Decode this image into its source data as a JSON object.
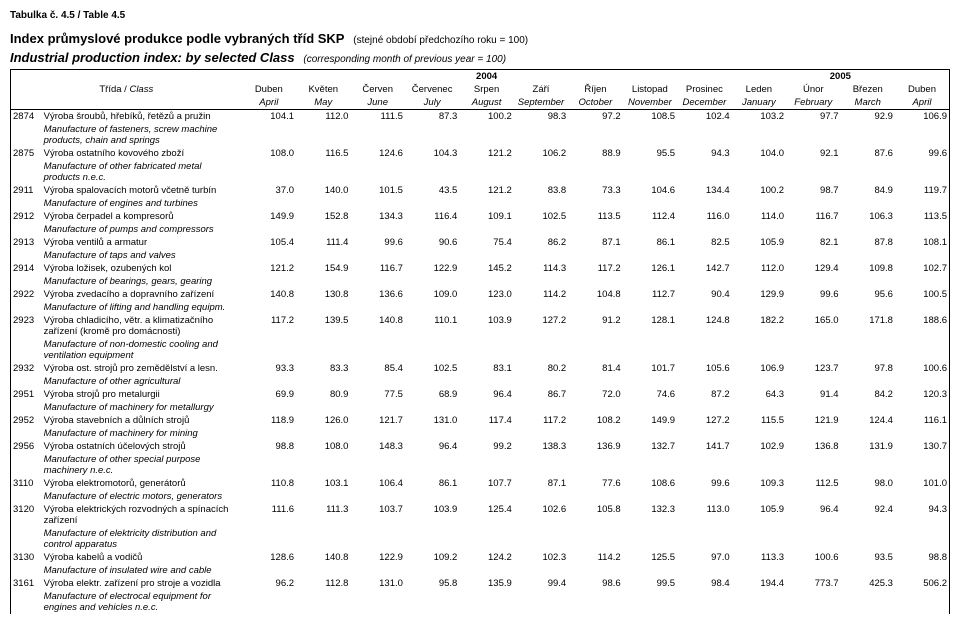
{
  "tableLabel": "Tabulka č. 4.5 / Table 4.5",
  "titleCz": "Index průmyslové produkce podle vybraných tříd SKP",
  "titleCzNote": "(stejné období předchozího roku = 100)",
  "titleEn": "Industrial production index: by selected Class",
  "titleEnNote": "(corresponding month of previous year = 100)",
  "classHeaderCz": "Třída / ",
  "classHeaderEn": "Class",
  "year2004": "2004",
  "year2005": "2005",
  "months": [
    {
      "cz": "Duben",
      "en": "April"
    },
    {
      "cz": "Květen",
      "en": "May"
    },
    {
      "cz": "Červen",
      "en": "June"
    },
    {
      "cz": "Červenec",
      "en": "July"
    },
    {
      "cz": "Srpen",
      "en": "August"
    },
    {
      "cz": "Září",
      "en": "September"
    },
    {
      "cz": "Říjen",
      "en": "October"
    },
    {
      "cz": "Listopad",
      "en": "November"
    },
    {
      "cz": "Prosinec",
      "en": "December"
    },
    {
      "cz": "Leden",
      "en": "January"
    },
    {
      "cz": "Únor",
      "en": "February"
    },
    {
      "cz": "Březen",
      "en": "March"
    },
    {
      "cz": "Duben",
      "en": "April"
    }
  ],
  "rows": [
    {
      "code": "2874",
      "desc": "Výroba šroubů, hřebíků, řetězů a pružin",
      "descEn": "Manufacture of fasteners, screw machine products, chain and springs",
      "vals": [
        "104.1",
        "112.0",
        "111.5",
        "87.3",
        "100.2",
        "98.3",
        "97.2",
        "108.5",
        "102.4",
        "103.2",
        "97.7",
        "92.9",
        "106.9"
      ]
    },
    {
      "code": "2875",
      "desc": "Výroba ostatního kovového zboží",
      "descEn": "Manufacture of other fabricated metal products n.e.c.",
      "vals": [
        "108.0",
        "116.5",
        "124.6",
        "104.3",
        "121.2",
        "106.2",
        "88.9",
        "95.5",
        "94.3",
        "104.0",
        "92.1",
        "87.6",
        "99.6"
      ]
    },
    {
      "code": "2911",
      "desc": "Výroba spalovacích motorů včetně turbín",
      "descEn": "Manufacture of engines and turbines",
      "vals": [
        "37.0",
        "140.0",
        "101.5",
        "43.5",
        "121.2",
        "83.8",
        "73.3",
        "104.6",
        "134.4",
        "100.2",
        "98.7",
        "84.9",
        "119.7"
      ]
    },
    {
      "code": "2912",
      "desc": "Výroba čerpadel a kompresorů",
      "descEn": "Manufacture of pumps and compressors",
      "vals": [
        "149.9",
        "152.8",
        "134.3",
        "116.4",
        "109.1",
        "102.5",
        "113.5",
        "112.4",
        "116.0",
        "114.0",
        "116.7",
        "106.3",
        "113.5"
      ]
    },
    {
      "code": "2913",
      "desc": "Výroba ventilů a armatur",
      "descEn": "Manufacture of taps and valves",
      "vals": [
        "105.4",
        "111.4",
        "99.6",
        "90.6",
        "75.4",
        "86.2",
        "87.1",
        "86.1",
        "82.5",
        "105.9",
        "82.1",
        "87.8",
        "108.1"
      ]
    },
    {
      "code": "2914",
      "desc": "Výroba ložisek, ozubených kol",
      "descEn": "Manufacture of bearings, gears, gearing",
      "vals": [
        "121.2",
        "154.9",
        "116.7",
        "122.9",
        "145.2",
        "114.3",
        "117.2",
        "126.1",
        "142.7",
        "112.0",
        "129.4",
        "109.8",
        "102.7"
      ]
    },
    {
      "code": "2922",
      "desc": "Výroba zvedacího a dopravního zařízení",
      "descEn": "Manufacture of lifting and handling equipm.",
      "vals": [
        "140.8",
        "130.8",
        "136.6",
        "109.0",
        "123.0",
        "114.2",
        "104.8",
        "112.7",
        "90.4",
        "129.9",
        "99.6",
        "95.6",
        "100.5"
      ]
    },
    {
      "code": "2923",
      "desc": "Výroba chladicího, větr. a klimatizačního zařízení (kromě pro domácnosti)",
      "descEn": "Manufacture of non-domestic cooling and ventilation equipment",
      "vals": [
        "117.2",
        "139.5",
        "140.8",
        "110.1",
        "103.9",
        "127.2",
        "91.2",
        "128.1",
        "124.8",
        "182.2",
        "165.0",
        "171.8",
        "188.6"
      ]
    },
    {
      "code": "2932",
      "desc": "Výroba ost. strojů pro zemědělství a lesn.",
      "descEn": "Manufacture of other agricultural",
      "vals": [
        "93.3",
        "83.3",
        "85.4",
        "102.5",
        "83.1",
        "80.2",
        "81.4",
        "101.7",
        "105.6",
        "106.9",
        "123.7",
        "97.8",
        "100.6"
      ]
    },
    {
      "code": "2951",
      "desc": "Výroba strojů pro metalurgii",
      "descEn": "Manufacture of machinery for metallurgy",
      "vals": [
        "69.9",
        "80.9",
        "77.5",
        "68.9",
        "96.4",
        "86.7",
        "72.0",
        "74.6",
        "87.2",
        "64.3",
        "91.4",
        "84.2",
        "120.3"
      ]
    },
    {
      "code": "2952",
      "desc": "Výroba stavebních a důlních strojů",
      "descEn": "Manufacture of machinery for mining",
      "vals": [
        "118.9",
        "126.0",
        "121.7",
        "131.0",
        "117.4",
        "117.2",
        "108.2",
        "149.9",
        "127.2",
        "115.5",
        "121.9",
        "124.4",
        "116.1"
      ]
    },
    {
      "code": "2956",
      "desc": "Výroba ostatních účelových strojů",
      "descEn": "Manufacture of other special purpose machinery n.e.c.",
      "vals": [
        "98.8",
        "108.0",
        "148.3",
        "96.4",
        "99.2",
        "138.3",
        "136.9",
        "132.7",
        "141.7",
        "102.9",
        "136.8",
        "131.9",
        "130.7"
      ]
    },
    {
      "code": "3110",
      "desc": "Výroba elektromotorů, generátorů",
      "descEn": "Manufacture of electric motors, generators",
      "vals": [
        "110.8",
        "103.1",
        "106.4",
        "86.1",
        "107.7",
        "87.1",
        "77.6",
        "108.6",
        "99.6",
        "109.3",
        "112.5",
        "98.0",
        "101.0"
      ]
    },
    {
      "code": "3120",
      "desc": "Výroba elektrických rozvodných a spínacích zařízení",
      "descEn": "Manufacture of elektricity distribution and control apparatus",
      "vals": [
        "111.6",
        "111.3",
        "103.7",
        "103.9",
        "125.4",
        "102.6",
        "105.8",
        "132.3",
        "113.0",
        "105.9",
        "96.4",
        "92.4",
        "94.3"
      ]
    },
    {
      "code": "3130",
      "desc": "Výroba kabelů a vodičů",
      "descEn": "Manufacture of insulated wire and cable",
      "vals": [
        "128.6",
        "140.8",
        "122.9",
        "109.2",
        "124.2",
        "102.3",
        "114.2",
        "125.5",
        "97.0",
        "113.3",
        "100.6",
        "93.5",
        "98.8"
      ]
    },
    {
      "code": "3161",
      "desc": "Výroba elektr. zařízení pro stroje a vozidla",
      "descEn": "Manufacture of electrocal equipment for engines and vehicles n.e.c.",
      "vals": [
        "96.2",
        "112.8",
        "131.0",
        "95.8",
        "135.9",
        "99.4",
        "98.6",
        "99.5",
        "98.4",
        "194.4",
        "773.7",
        "425.3",
        "506.2"
      ]
    }
  ]
}
